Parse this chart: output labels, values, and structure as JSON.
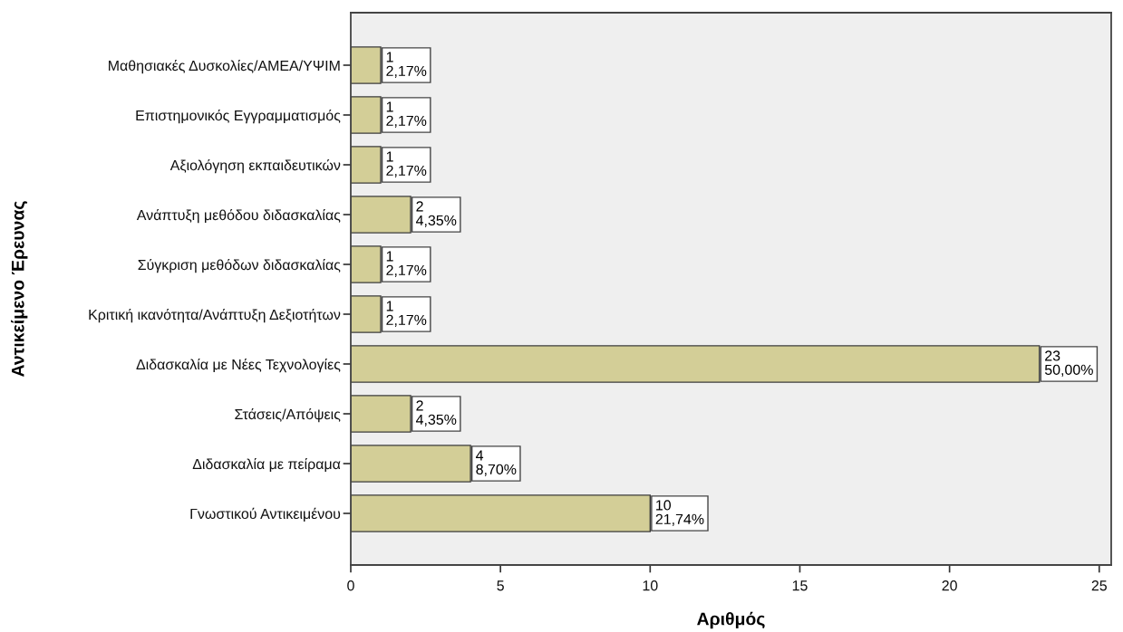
{
  "chart_data": {
    "type": "bar",
    "orientation": "horizontal",
    "categories": [
      "Μαθησιακές Δυσκολίες/ΑΜΕΑ/ΥΨΙΜ",
      "Επιστημονικός Εγγραμματισμός",
      "Αξιολόγηση εκπαιδευτικών",
      "Ανάπτυξη μεθόδου διδασκαλίας",
      "Σύγκριση μεθόδων διδασκαλίας",
      "Κριτική ικανότητα/Ανάπτυξη Δεξιοτήτων",
      "Διδασκαλία με Νέες Τεχνολογίες",
      "Στάσεις/Απόψεις",
      "Διδασκαλία με πείραμα",
      "Γνωστικού Αντικειμένου"
    ],
    "values": [
      1,
      1,
      1,
      2,
      1,
      1,
      23,
      2,
      4,
      10
    ],
    "value_labels": [
      "1\n2,17%",
      "1\n2,17%",
      "1\n2,17%",
      "2\n4,35%",
      "1\n2,17%",
      "1\n2,17%",
      "23\n50,00%",
      "2\n4,35%",
      "4\n8,70%",
      "10\n21,74%"
    ],
    "color": "#d3ce97",
    "xlim": [
      0,
      25.4
    ],
    "xticks": [
      0,
      5,
      10,
      15,
      20,
      25
    ],
    "xlabel": "Αριθμός",
    "ylabel": "Αντικείμενο Έρευνας"
  }
}
